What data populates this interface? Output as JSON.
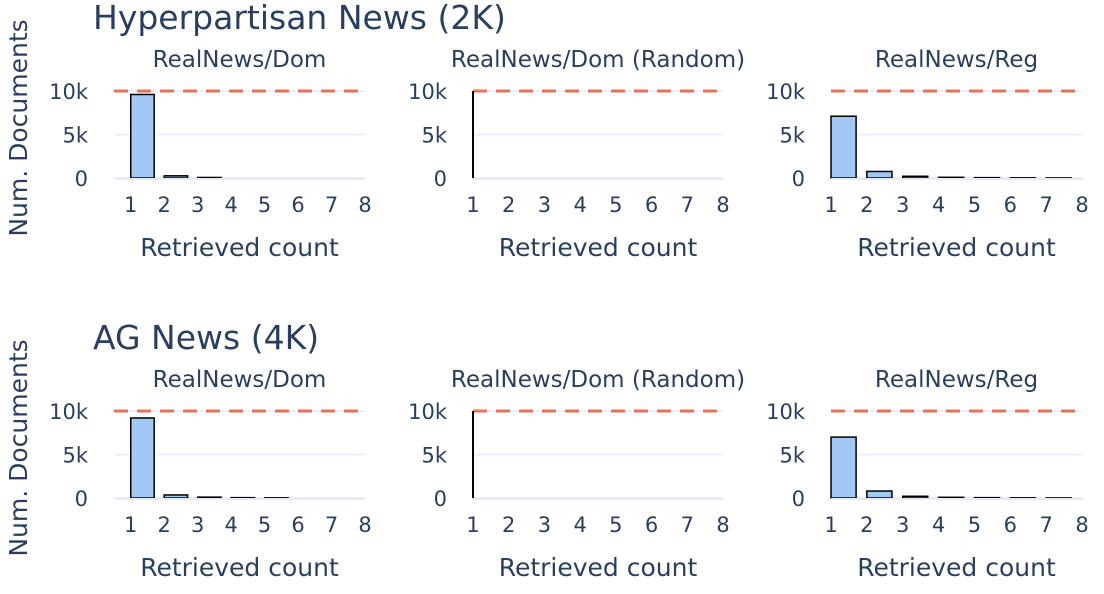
{
  "chart_data": [
    {
      "type": "bar",
      "section": "Hyperpartisan News (2K)",
      "title": "RealNews/Dom",
      "xlabel": "Retrieved count",
      "ylabel": "Num. Documents",
      "x": [
        1,
        2,
        3,
        4,
        5,
        6,
        7,
        8
      ],
      "values": [
        9600,
        250,
        60,
        0,
        0,
        0,
        0,
        0
      ],
      "xlim": [
        0.5,
        8
      ],
      "ylim": [
        0,
        10000
      ],
      "yticks": [
        "0",
        "5k",
        "10k"
      ],
      "reference_line": {
        "y": 10000,
        "style": "dashed",
        "color": "#E8705F"
      },
      "bar_color": "#A3C8F5",
      "grid": true
    },
    {
      "type": "bar",
      "section": "Hyperpartisan News (2K)",
      "title": "RealNews/Dom (Random)",
      "xlabel": "Retrieved count",
      "ylabel": "Num. Documents",
      "x": [
        1,
        2,
        3,
        4,
        5,
        6,
        7,
        8
      ],
      "values": [
        10000,
        0,
        0,
        0,
        0,
        0,
        0,
        0
      ],
      "xlim": [
        1,
        8
      ],
      "ylim": [
        0,
        10000
      ],
      "yticks": [
        "0",
        "5k",
        "10k"
      ],
      "reference_line": {
        "y": 10000,
        "style": "dashed",
        "color": "#E8705F"
      },
      "bar_color": "#A3C8F5",
      "grid": true
    },
    {
      "type": "bar",
      "section": "Hyperpartisan News (2K)",
      "title": "RealNews/Reg",
      "xlabel": "Retrieved count",
      "ylabel": "Num. Documents",
      "x": [
        1,
        2,
        3,
        4,
        5,
        6,
        7,
        8
      ],
      "values": [
        7100,
        750,
        200,
        80,
        40,
        20,
        10,
        5
      ],
      "xlim": [
        1,
        8
      ],
      "ylim": [
        0,
        10000
      ],
      "yticks": [
        "0",
        "5k",
        "10k"
      ],
      "reference_line": {
        "y": 10000,
        "style": "dashed",
        "color": "#E8705F"
      },
      "bar_color": "#A3C8F5",
      "grid": true
    },
    {
      "type": "bar",
      "section": "AG News (4K)",
      "title": "RealNews/Dom",
      "xlabel": "Retrieved count",
      "ylabel": "Num. Documents",
      "x": [
        1,
        2,
        3,
        4,
        5,
        6,
        7,
        8
      ],
      "values": [
        9200,
        350,
        100,
        40,
        20,
        0,
        0,
        0
      ],
      "xlim": [
        0.5,
        8
      ],
      "ylim": [
        0,
        10000
      ],
      "yticks": [
        "0",
        "5k",
        "10k"
      ],
      "reference_line": {
        "y": 10000,
        "style": "dashed",
        "color": "#E8705F"
      },
      "bar_color": "#A3C8F5",
      "grid": true
    },
    {
      "type": "bar",
      "section": "AG News (4K)",
      "title": "RealNews/Dom (Random)",
      "xlabel": "Retrieved count",
      "ylabel": "Num. Documents",
      "x": [
        1,
        2,
        3,
        4,
        5,
        6,
        7,
        8
      ],
      "values": [
        10000,
        0,
        0,
        0,
        0,
        0,
        0,
        0
      ],
      "xlim": [
        1,
        8
      ],
      "ylim": [
        0,
        10000
      ],
      "yticks": [
        "0",
        "5k",
        "10k"
      ],
      "reference_line": {
        "y": 10000,
        "style": "dashed",
        "color": "#E8705F"
      },
      "bar_color": "#A3C8F5",
      "grid": true
    },
    {
      "type": "bar",
      "section": "AG News (4K)",
      "title": "RealNews/Reg",
      "xlabel": "Retrieved count",
      "ylabel": "Num. Documents",
      "x": [
        1,
        2,
        3,
        4,
        5,
        6,
        7,
        8
      ],
      "values": [
        7000,
        800,
        200,
        80,
        40,
        20,
        10,
        5
      ],
      "xlim": [
        1,
        8
      ],
      "ylim": [
        0,
        10000
      ],
      "yticks": [
        "0",
        "5k",
        "10k"
      ],
      "reference_line": {
        "y": 10000,
        "style": "dashed",
        "color": "#E8705F"
      },
      "bar_color": "#A3C8F5",
      "grid": true
    }
  ]
}
